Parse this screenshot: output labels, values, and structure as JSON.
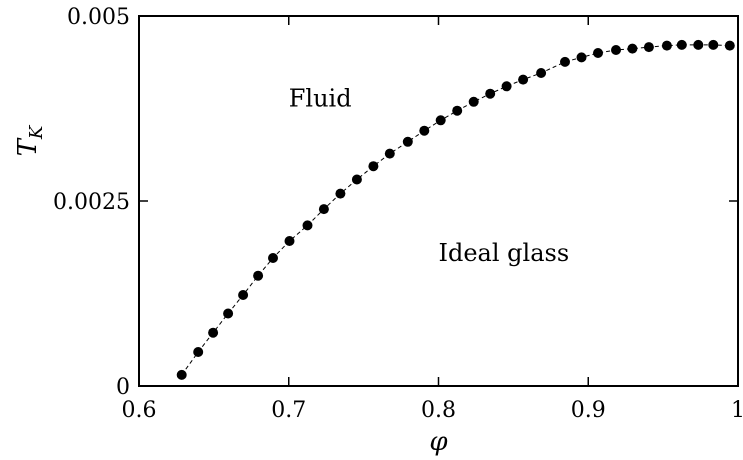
{
  "chart_data": {
    "type": "scatter",
    "xlabel": "φ",
    "ylabel": "T",
    "ylabel_subscript": "K",
    "xlim": [
      0.6,
      1.0
    ],
    "ylim": [
      0,
      0.005
    ],
    "grid": false,
    "xticks": [
      {
        "value": 0.6,
        "label": "0.6"
      },
      {
        "value": 0.7,
        "label": "0.7"
      },
      {
        "value": 0.8,
        "label": "0.8"
      },
      {
        "value": 0.9,
        "label": "0.9"
      },
      {
        "value": 1.0,
        "label": "1"
      }
    ],
    "yticks": [
      {
        "value": 0,
        "label": "0"
      },
      {
        "value": 0.0025,
        "label": "0.0025"
      },
      {
        "value": 0.005,
        "label": "0.005"
      }
    ],
    "annotations": [
      {
        "text": "Fluid",
        "x": 0.7,
        "y": 0.00378
      },
      {
        "text": "Ideal glass",
        "x": 0.8,
        "y": 0.00169
      }
    ],
    "series": [
      {
        "style": "black filled circles connected by dashed line",
        "color": "#000000",
        "x": [
          0.6285,
          0.6395,
          0.6495,
          0.6595,
          0.6695,
          0.6795,
          0.6895,
          0.7005,
          0.7125,
          0.7235,
          0.7345,
          0.7455,
          0.7565,
          0.7675,
          0.7795,
          0.7905,
          0.8015,
          0.8125,
          0.8235,
          0.8345,
          0.8455,
          0.8565,
          0.8685,
          0.8845,
          0.8955,
          0.9065,
          0.9185,
          0.9295,
          0.9405,
          0.9525,
          0.9625,
          0.9735,
          0.9835,
          0.9945
        ],
        "y": [
          0.00015,
          0.00046,
          0.00072,
          0.00098,
          0.00123,
          0.00149,
          0.00173,
          0.00196,
          0.00217,
          0.00239,
          0.0026,
          0.00279,
          0.00297,
          0.00314,
          0.0033,
          0.00345,
          0.00359,
          0.00372,
          0.00384,
          0.00395,
          0.00405,
          0.00414,
          0.00423,
          0.00438,
          0.00444,
          0.0045,
          0.00454,
          0.00456,
          0.00458,
          0.0046,
          0.00461,
          0.00461,
          0.00461,
          0.0046
        ]
      }
    ]
  }
}
